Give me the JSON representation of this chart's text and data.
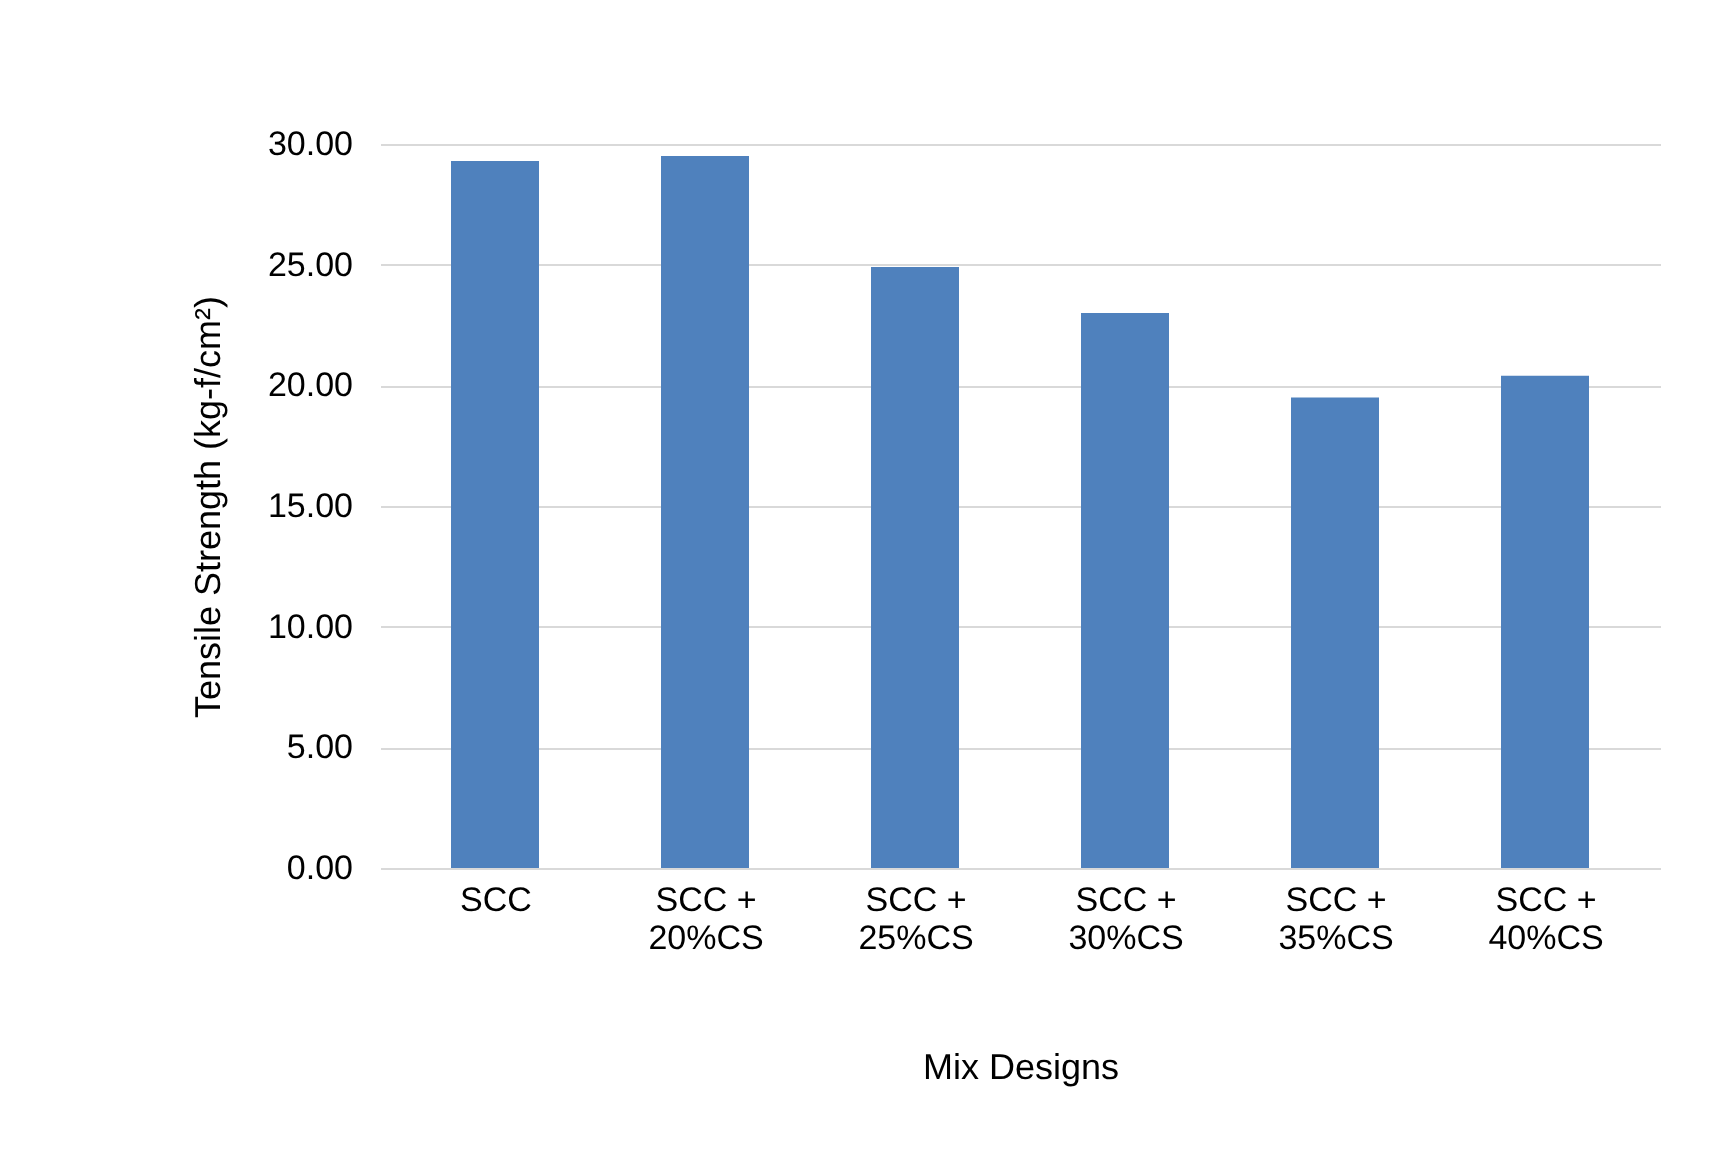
{
  "chart_data": {
    "type": "bar",
    "xlabel": "Mix Designs",
    "ylabel": "Tensile Strength (kg-f/cm²)",
    "categories": [
      "SCC",
      "SCC + 20%CS",
      "SCC + 25%CS",
      "SCC + 30%CS",
      "SCC + 35%CS",
      "SCC + 40%CS"
    ],
    "values": [
      29.3,
      29.5,
      24.9,
      23.0,
      19.5,
      20.4
    ],
    "color": "#4f81bd",
    "ylim": [
      0,
      30
    ],
    "yticks": [
      {
        "value": 0,
        "label": "0.00"
      },
      {
        "value": 5,
        "label": "5.00"
      },
      {
        "value": 10,
        "label": "10.00"
      },
      {
        "value": 15,
        "label": "15.00"
      },
      {
        "value": 20,
        "label": "20.00"
      },
      {
        "value": 25,
        "label": "25.00"
      },
      {
        "value": 30,
        "label": "30.00"
      }
    ],
    "grid": "y"
  }
}
